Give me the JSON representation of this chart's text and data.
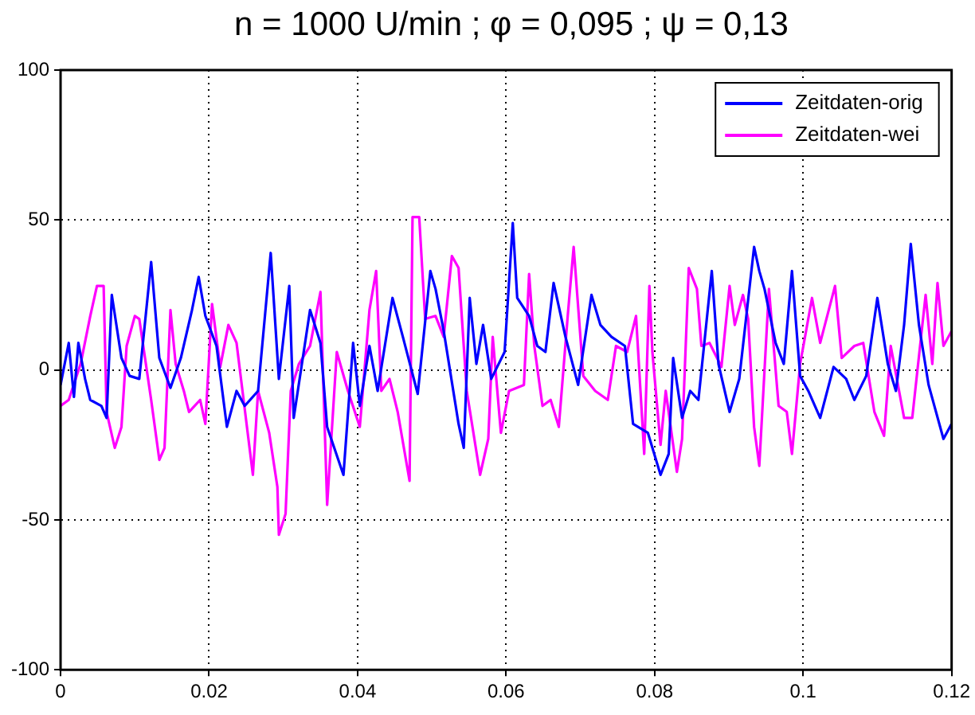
{
  "chart_data": {
    "type": "line",
    "title": "n = 1000 U/min ; φ = 0,095 ; ψ = 0,13",
    "xlim": [
      0,
      0.12
    ],
    "xticks": [
      0,
      0.02,
      0.04,
      0.06,
      0.08,
      0.1,
      0.12
    ],
    "ylim": [
      -100,
      100
    ],
    "yticks": [
      -100,
      -50,
      0,
      50,
      100
    ],
    "grid": true,
    "legend": "top right",
    "marker": "none",
    "line_style": "solid",
    "series": [
      {
        "name": "Zeitdaten-orig",
        "color": "#0000ff",
        "x": [
          0,
          0.0011,
          0.0018,
          0.0024,
          0.0033,
          0.004,
          0.0055,
          0.0062,
          0.0069,
          0.0082,
          0.0093,
          0.0106,
          0.0122,
          0.0133,
          0.0148,
          0.0162,
          0.0177,
          0.0186,
          0.0195,
          0.021,
          0.0224,
          0.0237,
          0.0248,
          0.0266,
          0.0283,
          0.0294,
          0.0308,
          0.0314,
          0.0336,
          0.035,
          0.0359,
          0.0381,
          0.0394,
          0.0403,
          0.0416,
          0.0427,
          0.0447,
          0.0461,
          0.0481,
          0.0498,
          0.0505,
          0.0516,
          0.0536,
          0.0543,
          0.0551,
          0.056,
          0.0569,
          0.058,
          0.0598,
          0.0609,
          0.0615,
          0.0631,
          0.0642,
          0.0653,
          0.0664,
          0.068,
          0.0697,
          0.0715,
          0.0727,
          0.0742,
          0.076,
          0.0771,
          0.0791,
          0.0808,
          0.0819,
          0.0825,
          0.0837,
          0.0848,
          0.0859,
          0.0877,
          0.0886,
          0.0901,
          0.0914,
          0.0934,
          0.0941,
          0.0948,
          0.0963,
          0.0974,
          0.0985,
          0.0996,
          0.1007,
          0.1023,
          0.1041,
          0.1058,
          0.1069,
          0.1085,
          0.11,
          0.1114,
          0.1125,
          0.1136,
          0.1145,
          0.1156,
          0.1169,
          0.1189,
          0.12
        ],
        "values": [
          -5,
          9,
          -9,
          9,
          -3,
          -10,
          -12,
          -16,
          25,
          4,
          -2,
          -3,
          36,
          4,
          -6,
          4,
          20,
          31,
          18,
          8,
          -19,
          -7,
          -12,
          -7,
          39,
          -3,
          28,
          -16,
          20,
          9,
          -19,
          -35,
          9,
          -12,
          8,
          -7,
          24,
          11,
          -8,
          33,
          27,
          13,
          -18,
          -26,
          24,
          2,
          15,
          -3,
          6,
          49,
          24,
          18,
          8,
          6,
          29,
          11,
          -5,
          25,
          15,
          11,
          8,
          -18,
          -21,
          -35,
          -28,
          4,
          -16,
          -7,
          -10,
          33,
          2,
          -14,
          -3,
          41,
          33,
          27,
          9,
          2,
          33,
          -2,
          -7,
          -16,
          1,
          -3,
          -10,
          -2,
          24,
          2,
          -7,
          15,
          42,
          15,
          -5,
          -23,
          -18
        ]
      },
      {
        "name": "Zeitdaten-wei",
        "color": "#ff00ff",
        "x": [
          0,
          0.0011,
          0.0027,
          0.004,
          0.0049,
          0.0058,
          0.0062,
          0.0073,
          0.0082,
          0.0089,
          0.01,
          0.0106,
          0.0122,
          0.0133,
          0.014,
          0.0148,
          0.0155,
          0.0166,
          0.0173,
          0.0188,
          0.0195,
          0.0204,
          0.0215,
          0.0226,
          0.0237,
          0.0259,
          0.0266,
          0.0281,
          0.0292,
          0.0294,
          0.0303,
          0.031,
          0.0321,
          0.0336,
          0.035,
          0.0359,
          0.0372,
          0.0387,
          0.0403,
          0.0416,
          0.0425,
          0.0432,
          0.0443,
          0.0454,
          0.047,
          0.0474,
          0.0483,
          0.0491,
          0.0505,
          0.0516,
          0.0527,
          0.0536,
          0.0547,
          0.0565,
          0.0576,
          0.0582,
          0.0593,
          0.0604,
          0.0624,
          0.0631,
          0.0638,
          0.0649,
          0.066,
          0.0671,
          0.0683,
          0.0691,
          0.0704,
          0.072,
          0.0737,
          0.0748,
          0.0763,
          0.0775,
          0.0786,
          0.0793,
          0.0797,
          0.0808,
          0.0815,
          0.083,
          0.0837,
          0.0846,
          0.0857,
          0.0863,
          0.0874,
          0.089,
          0.0901,
          0.0908,
          0.0919,
          0.0926,
          0.0934,
          0.0941,
          0.0954,
          0.0967,
          0.0978,
          0.0985,
          0.0996,
          0.1012,
          0.1023,
          0.1043,
          0.1052,
          0.1069,
          0.1081,
          0.1096,
          0.1109,
          0.1118,
          0.1136,
          0.1147,
          0.1165,
          0.1174,
          0.1181,
          0.1189,
          0.12
        ],
        "values": [
          -12,
          -10,
          2,
          18,
          28,
          28,
          -14,
          -26,
          -19,
          8,
          18,
          17,
          -10,
          -30,
          -26,
          20,
          2,
          -7,
          -14,
          -10,
          -18,
          22,
          1,
          15,
          9,
          -35,
          -7,
          -21,
          -39,
          -55,
          -48,
          -7,
          2,
          8,
          26,
          -45,
          6,
          -7,
          -19,
          20,
          33,
          -7,
          -3,
          -14,
          -37,
          51,
          51,
          17,
          18,
          11,
          38,
          34,
          -7,
          -35,
          -23,
          11,
          -21,
          -7,
          -5,
          32,
          8,
          -12,
          -10,
          -19,
          18,
          41,
          -2,
          -7,
          -10,
          8,
          6,
          18,
          -28,
          28,
          6,
          -25,
          -7,
          -34,
          -23,
          34,
          27,
          8,
          9,
          1,
          28,
          15,
          25,
          17,
          -19,
          -32,
          27,
          -12,
          -14,
          -28,
          2,
          24,
          9,
          28,
          4,
          8,
          9,
          -14,
          -22,
          8,
          -16,
          -16,
          25,
          2,
          29,
          8,
          13
        ]
      }
    ]
  }
}
